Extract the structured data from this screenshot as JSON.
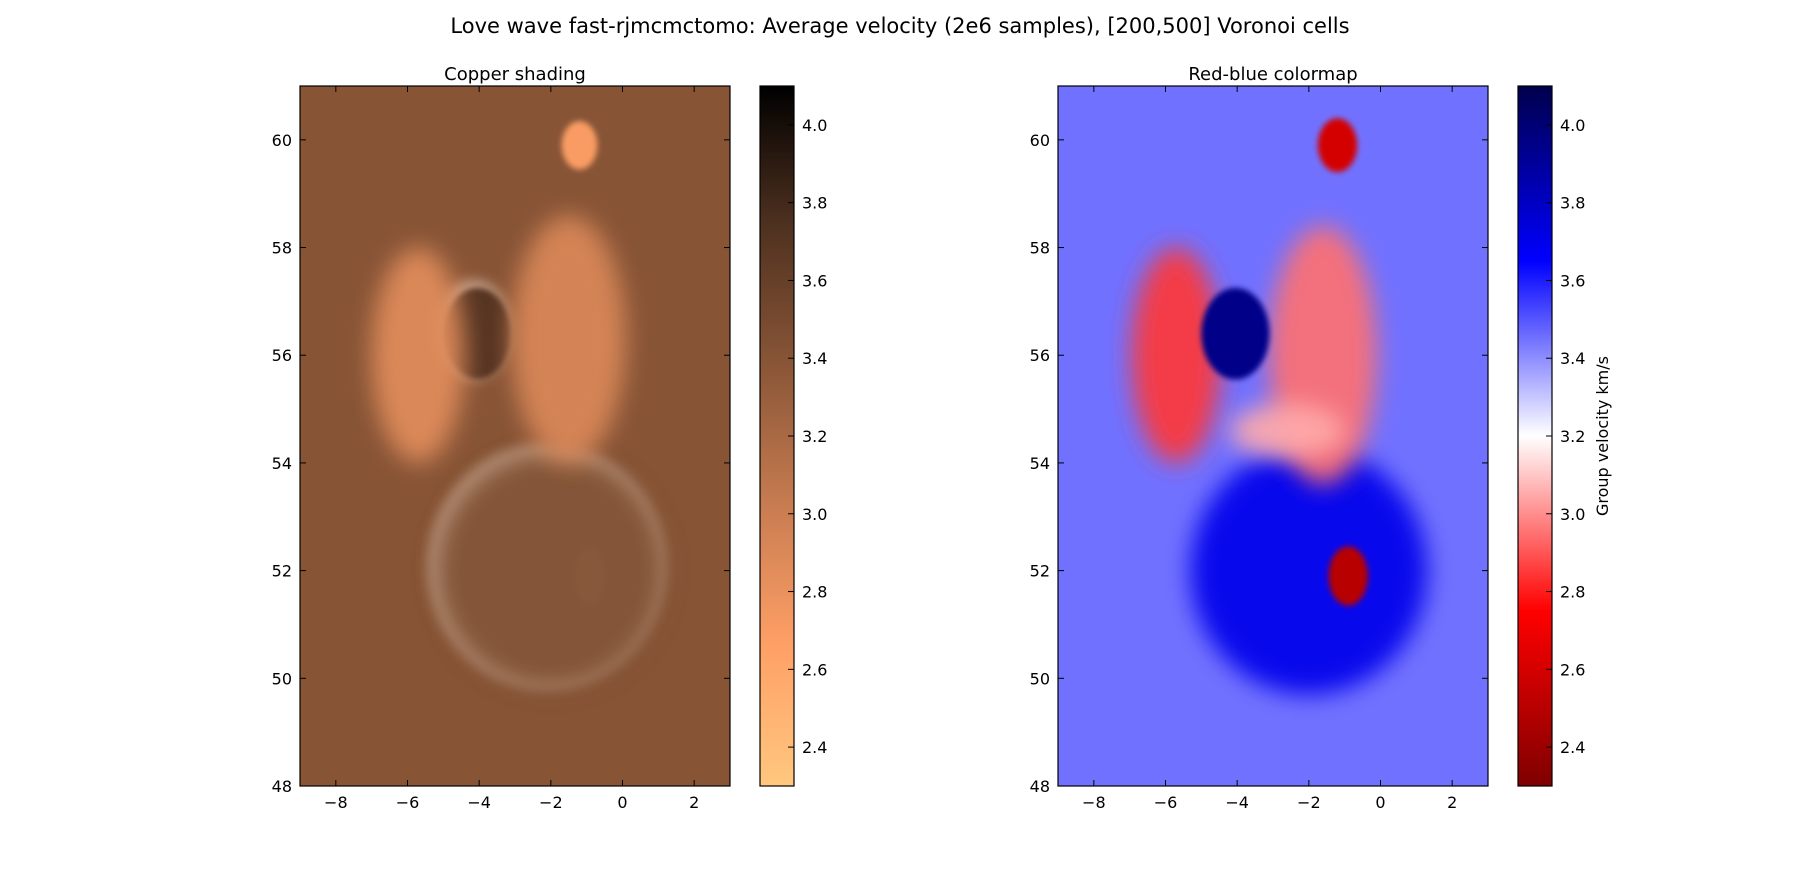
{
  "figure": {
    "suptitle": "Love wave fast-rjmcmctomo: Average velocity (2e6 samples), [200,500] Voronoi cells"
  },
  "colors": {
    "copper_ramp": [
      "#ffc77f",
      "#ffa066",
      "#c87c51",
      "#8a5637",
      "#4f3120",
      "#000000"
    ],
    "seismic_ramp": [
      "#7f0000",
      "#ff0000",
      "#ffffff",
      "#0000ff",
      "#00004c"
    ],
    "copper_background": "#b38a6b",
    "bluered_background": "#4a5ff0",
    "axes_frame": "#000000"
  },
  "chart_data": [
    {
      "type": "heatmap",
      "title": "Copper shading",
      "xlabel": "",
      "ylabel": "",
      "xlim": [
        -9,
        3
      ],
      "ylim": [
        48,
        61
      ],
      "xticks": [
        -8,
        -6,
        -4,
        -2,
        0,
        2
      ],
      "xtick_labels": [
        "−8",
        "−6",
        "−4",
        "−2",
        "0",
        "2"
      ],
      "yticks": [
        48,
        50,
        52,
        54,
        56,
        58,
        60
      ],
      "ytick_labels": [
        "48",
        "50",
        "52",
        "54",
        "56",
        "58",
        "60"
      ],
      "colormap": "copper_r (hillshaded)",
      "colorbar": {
        "range": [
          2.3,
          4.1
        ],
        "ticks": [
          2.4,
          2.6,
          2.8,
          3.0,
          3.2,
          3.4,
          3.6,
          3.8,
          4.0
        ],
        "tick_labels": [
          "2.4",
          "2.6",
          "2.8",
          "3.0",
          "3.2",
          "3.4",
          "3.6",
          "3.8",
          "4.0"
        ],
        "label": ""
      },
      "background_value": 3.4,
      "features": [
        {
          "kind": "ellipse",
          "cx": -4.05,
          "cy": 56.4,
          "rx": 0.95,
          "ry": 0.85,
          "value": 3.7,
          "shade": "dark"
        },
        {
          "kind": "ellipse",
          "cx": -0.9,
          "cy": 51.9,
          "rx": 0.45,
          "ry": 0.55,
          "value": 2.4,
          "shade": "bright"
        },
        {
          "kind": "ellipse",
          "cx": -1.2,
          "cy": 59.9,
          "rx": 0.5,
          "ry": 0.45,
          "value": 2.7,
          "shade": "bright"
        },
        {
          "kind": "region",
          "cx": -2.0,
          "cy": 52.0,
          "rx": 3.2,
          "ry": 2.2,
          "value": 3.45,
          "shade": "dark"
        },
        {
          "kind": "region",
          "cx": -5.7,
          "cy": 56.0,
          "rx": 1.3,
          "ry": 2.0,
          "value": 2.85,
          "shade": "light"
        },
        {
          "kind": "region",
          "cx": -1.5,
          "cy": 56.3,
          "rx": 1.6,
          "ry": 2.3,
          "value": 2.9,
          "shade": "light"
        }
      ]
    },
    {
      "type": "heatmap",
      "title": "Red-blue colormap",
      "xlabel": "",
      "ylabel": "",
      "xlim": [
        -9,
        3
      ],
      "ylim": [
        48,
        61
      ],
      "xticks": [
        -8,
        -6,
        -4,
        -2,
        0,
        2
      ],
      "xtick_labels": [
        "−8",
        "−6",
        "−4",
        "−2",
        "0",
        "2"
      ],
      "yticks": [
        48,
        50,
        52,
        54,
        56,
        58,
        60
      ],
      "ytick_labels": [
        "48",
        "50",
        "52",
        "54",
        "56",
        "58",
        "60"
      ],
      "colormap": "seismic_r",
      "colorbar": {
        "range": [
          2.3,
          4.1
        ],
        "ticks": [
          2.4,
          2.6,
          2.8,
          3.0,
          3.2,
          3.4,
          3.6,
          3.8,
          4.0
        ],
        "tick_labels": [
          "2.4",
          "2.6",
          "2.8",
          "3.0",
          "3.2",
          "3.4",
          "3.6",
          "3.8",
          "4.0"
        ],
        "label": "Group velocity km/s"
      },
      "background_value": 3.45,
      "features": [
        {
          "kind": "region",
          "cx": -2.0,
          "cy": 52.0,
          "rx": 3.3,
          "ry": 2.3,
          "value": 3.7,
          "color": "blue"
        },
        {
          "kind": "region",
          "cx": -5.7,
          "cy": 56.0,
          "rx": 1.25,
          "ry": 2.0,
          "value": 2.85,
          "color": "red"
        },
        {
          "kind": "region",
          "cx": -1.6,
          "cy": 56.0,
          "rx": 1.5,
          "ry": 2.4,
          "value": 2.95,
          "color": "red"
        },
        {
          "kind": "region",
          "cx": -2.6,
          "cy": 54.6,
          "rx": 1.6,
          "ry": 0.5,
          "value": 3.05,
          "color": "light-red"
        },
        {
          "kind": "ellipse",
          "cx": -4.05,
          "cy": 56.4,
          "rx": 0.95,
          "ry": 0.85,
          "value": 3.95,
          "color": "navy"
        },
        {
          "kind": "ellipse",
          "cx": -0.9,
          "cy": 51.9,
          "rx": 0.55,
          "ry": 0.55,
          "value": 2.5,
          "color": "dark-red"
        },
        {
          "kind": "ellipse",
          "cx": -1.2,
          "cy": 59.9,
          "rx": 0.55,
          "ry": 0.5,
          "value": 2.6,
          "color": "dark-red"
        }
      ]
    }
  ]
}
